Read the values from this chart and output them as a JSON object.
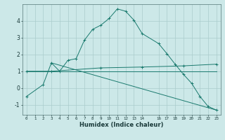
{
  "xlabel": "Humidex (Indice chaleur)",
  "background_color": "#cce8e8",
  "grid_color": "#aacccc",
  "line_color": "#1a7a6e",
  "xlim": [
    -0.5,
    23.5
  ],
  "ylim": [
    -1.6,
    5.0
  ],
  "yticks": [
    -1,
    0,
    1,
    2,
    3,
    4
  ],
  "xticks": [
    0,
    1,
    2,
    3,
    4,
    5,
    6,
    7,
    8,
    9,
    10,
    11,
    12,
    13,
    14,
    16,
    17,
    18,
    19,
    20,
    21,
    22,
    23
  ],
  "series": [
    {
      "x": [
        0,
        2,
        3,
        4,
        5,
        6,
        7,
        8,
        9,
        10,
        11,
        12,
        13,
        14,
        16,
        17,
        18,
        19,
        20,
        21,
        22,
        23
      ],
      "y": [
        -0.5,
        0.2,
        1.5,
        1.0,
        1.65,
        1.75,
        2.85,
        3.5,
        3.75,
        4.15,
        4.72,
        4.58,
        4.05,
        3.25,
        2.65,
        2.05,
        1.42,
        0.82,
        0.28,
        -0.5,
        -1.1,
        -1.32
      ]
    },
    {
      "x": [
        0,
        3,
        9,
        14,
        19,
        23
      ],
      "y": [
        1.0,
        1.0,
        1.2,
        1.25,
        1.32,
        1.42
      ]
    },
    {
      "x": [
        0,
        23
      ],
      "y": [
        1.0,
        1.0
      ]
    },
    {
      "x": [
        3,
        23
      ],
      "y": [
        1.5,
        -1.32
      ]
    }
  ]
}
